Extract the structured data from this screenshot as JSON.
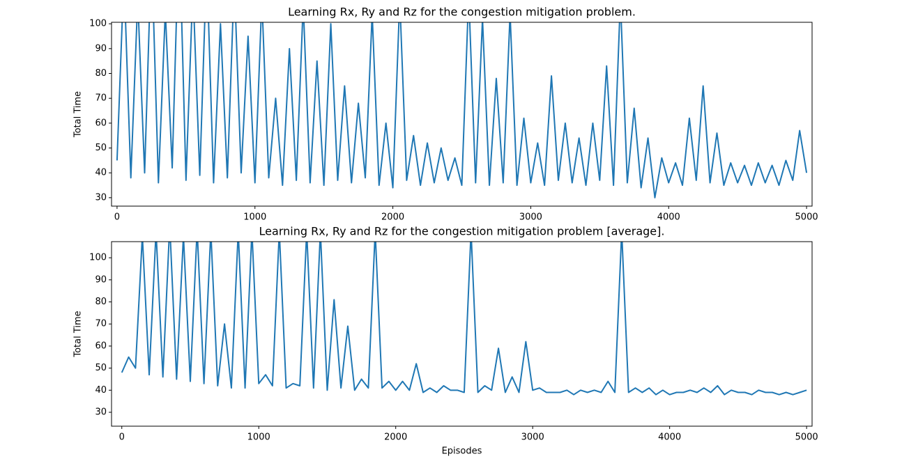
{
  "chart_data": [
    {
      "type": "line",
      "title": "Learning Rx, Ry and Rz for the congestion mitigation problem.",
      "y_label": "Total Time",
      "color": "#1f77b4",
      "x": [
        0,
        50,
        100,
        150,
        200,
        250,
        300,
        350,
        400,
        450,
        500,
        550,
        600,
        650,
        700,
        750,
        800,
        850,
        900,
        950,
        1000,
        1050,
        1100,
        1150,
        1200,
        1250,
        1300,
        1350,
        1400,
        1450,
        1500,
        1550,
        1600,
        1650,
        1700,
        1750,
        1800,
        1850,
        1900,
        1950,
        2000,
        2050,
        2100,
        2150,
        2200,
        2250,
        2300,
        2350,
        2400,
        2450,
        2500,
        2550,
        2600,
        2650,
        2700,
        2750,
        2800,
        2850,
        2900,
        2950,
        3000,
        3050,
        3100,
        3150,
        3200,
        3250,
        3300,
        3350,
        3400,
        3450,
        3500,
        3550,
        3600,
        3650,
        3700,
        3750,
        3800,
        3850,
        3900,
        3950,
        4000,
        4050,
        4100,
        4150,
        4200,
        4250,
        4300,
        4350,
        4400,
        4450,
        4500,
        4550,
        4600,
        4650,
        4700,
        4750,
        4800,
        4850,
        4900,
        4950,
        5000
      ],
      "values": [
        45,
        120,
        38,
        110,
        40,
        130,
        36,
        105,
        42,
        140,
        37,
        115,
        39,
        125,
        36,
        100,
        38,
        118,
        40,
        95,
        36,
        110,
        38,
        70,
        35,
        90,
        37,
        108,
        36,
        85,
        35,
        100,
        37,
        75,
        36,
        68,
        38,
        104,
        35,
        60,
        34,
        110,
        37,
        55,
        35,
        52,
        36,
        50,
        37,
        46,
        35,
        112,
        36,
        102,
        35,
        78,
        36,
        104,
        35,
        62,
        36,
        52,
        35,
        79,
        37,
        60,
        36,
        54,
        35,
        60,
        37,
        83,
        35,
        110,
        36,
        66,
        34,
        54,
        30,
        46,
        36,
        44,
        35,
        62,
        37,
        75,
        36,
        56,
        35,
        44,
        36,
        43,
        35,
        44,
        36,
        43,
        35,
        45,
        37,
        57,
        40
      ],
      "xlim": [
        -40,
        5040
      ],
      "ylim": [
        26.6,
        100.6
      ],
      "xticks": [
        0,
        1000,
        2000,
        3000,
        4000,
        5000
      ],
      "yticks": [
        30,
        40,
        50,
        60,
        70,
        80,
        90,
        100
      ]
    },
    {
      "type": "line",
      "title": "Learning Rx, Ry and Rz for the congestion mitigation problem [average].",
      "y_label": "Total Time",
      "x_label": "Episodes",
      "color": "#1f77b4",
      "x": [
        0,
        50,
        100,
        150,
        200,
        250,
        300,
        350,
        400,
        450,
        500,
        550,
        600,
        650,
        700,
        750,
        800,
        850,
        900,
        950,
        1000,
        1050,
        1100,
        1150,
        1200,
        1250,
        1300,
        1350,
        1400,
        1450,
        1500,
        1550,
        1600,
        1650,
        1700,
        1750,
        1800,
        1850,
        1900,
        1950,
        2000,
        2050,
        2100,
        2150,
        2200,
        2250,
        2300,
        2350,
        2400,
        2450,
        2500,
        2550,
        2600,
        2650,
        2700,
        2750,
        2800,
        2850,
        2900,
        2950,
        3000,
        3050,
        3100,
        3150,
        3200,
        3250,
        3300,
        3350,
        3400,
        3450,
        3500,
        3550,
        3600,
        3650,
        3700,
        3750,
        3800,
        3850,
        3900,
        3950,
        4000,
        4050,
        4100,
        4150,
        4200,
        4250,
        4300,
        4350,
        4400,
        4450,
        4500,
        4550,
        4600,
        4650,
        4700,
        4750,
        4800,
        4850,
        4900,
        4950,
        5000
      ],
      "values": [
        48,
        55,
        50,
        110,
        47,
        112,
        46,
        115,
        45,
        110,
        44,
        113,
        43,
        112,
        42,
        70,
        41,
        112,
        41,
        112,
        43,
        47,
        42,
        112,
        41,
        43,
        42,
        112,
        41,
        112,
        40,
        81,
        41,
        69,
        40,
        45,
        41,
        112,
        41,
        44,
        40,
        44,
        40,
        52,
        39,
        41,
        39,
        42,
        40,
        40,
        39,
        112,
        39,
        42,
        40,
        59,
        39,
        46,
        39,
        62,
        40,
        41,
        39,
        39,
        39,
        40,
        38,
        40,
        39,
        40,
        39,
        44,
        39,
        112,
        39,
        41,
        39,
        41,
        38,
        40,
        38,
        39,
        39,
        40,
        39,
        41,
        39,
        42,
        38,
        40,
        39,
        39,
        38,
        40,
        39,
        39,
        38,
        39,
        38,
        39,
        40
      ],
      "xlim": [
        -75,
        5040
      ],
      "ylim": [
        23.7,
        107.3
      ],
      "xticks": [
        0,
        1000,
        2000,
        3000,
        4000,
        5000
      ],
      "yticks": [
        30,
        40,
        50,
        60,
        70,
        80,
        90,
        100
      ]
    }
  ]
}
